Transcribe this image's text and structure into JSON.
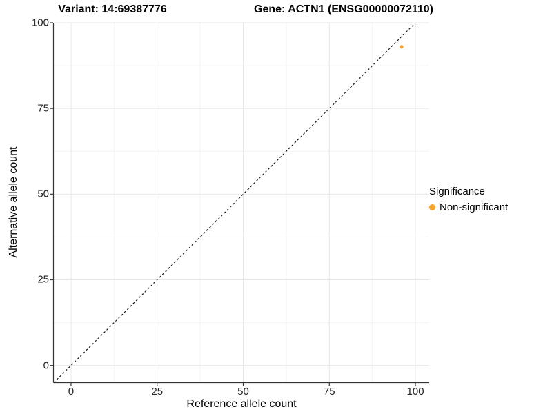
{
  "titles": {
    "variant": "Variant: 14:69387776",
    "gene": "Gene: ACTN1 (ENSG00000072110)"
  },
  "chart_data": {
    "type": "scatter",
    "title_left": "Variant: 14:69387776",
    "title_right": "Gene: ACTN1 (ENSG00000072110)",
    "xlabel": "Reference allele count",
    "ylabel": "Alternative allele count",
    "xlim": [
      -5,
      104
    ],
    "ylim": [
      -4.9,
      100
    ],
    "x_ticks": [
      0,
      25,
      50,
      75,
      100
    ],
    "y_ticks": [
      0,
      25,
      50,
      75,
      100
    ],
    "x_minor_ticks": [
      12.5,
      37.5,
      62.5,
      87.5
    ],
    "y_minor_ticks": [
      12.5,
      37.5,
      62.5,
      87.5
    ],
    "grid": true,
    "identity_line": {
      "style": "dashed",
      "x1": -5,
      "y1": -5,
      "x2": 100,
      "y2": 100
    },
    "series": [
      {
        "name": "Non-significant",
        "color": "#F9A32B",
        "points": [
          {
            "x": 96,
            "y": 93
          }
        ]
      }
    ],
    "legend": {
      "title": "Significance",
      "position": "right",
      "entries": [
        {
          "label": "Non-significant",
          "color": "#F9A32B"
        }
      ]
    },
    "colors": {
      "axis_line": "#333333",
      "tick_mark": "#333333",
      "grid_major": "#E7E7E7",
      "grid_minor": "#F3F3F3",
      "identity_line": "#1a1a1a",
      "point": "#F9A32B"
    }
  }
}
